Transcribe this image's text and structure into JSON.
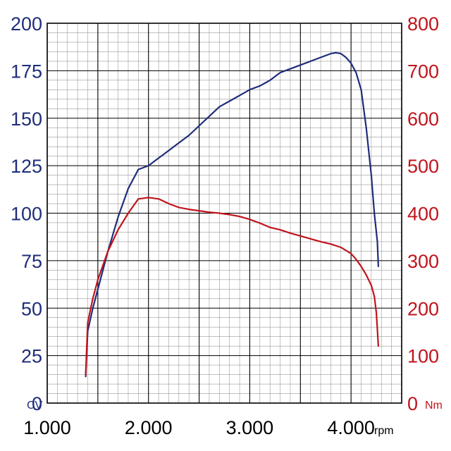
{
  "chart_data": {
    "type": "line",
    "title": "",
    "xlabel": "rpm",
    "ylabel_left": "CV",
    "ylabel_right": "Nm",
    "xlim": [
      1000,
      4500
    ],
    "ylim_left": [
      0,
      200
    ],
    "ylim_right": [
      0,
      800
    ],
    "grid": true,
    "colors": {
      "power": "#1f2d7a",
      "torque": "#c0141c",
      "grid_major": "#000000",
      "grid_minor": "#9a9a9a"
    },
    "x_ticks": [
      {
        "value": 1000,
        "label": "1.000"
      },
      {
        "value": 2000,
        "label": "2.000"
      },
      {
        "value": 3000,
        "label": "3.000"
      },
      {
        "value": 4000,
        "label": "4.000"
      }
    ],
    "y_ticks_left": [
      {
        "value": 0,
        "label": "0"
      },
      {
        "value": 25,
        "label": "25"
      },
      {
        "value": 50,
        "label": "50"
      },
      {
        "value": 75,
        "label": "75"
      },
      {
        "value": 100,
        "label": "100"
      },
      {
        "value": 125,
        "label": "125"
      },
      {
        "value": 150,
        "label": "150"
      },
      {
        "value": 175,
        "label": "175"
      },
      {
        "value": 200,
        "label": "200"
      }
    ],
    "y_ticks_right": [
      {
        "value": 0,
        "label": "0"
      },
      {
        "value": 100,
        "label": "100"
      },
      {
        "value": 200,
        "label": "200"
      },
      {
        "value": 300,
        "label": "300"
      },
      {
        "value": 400,
        "label": "400"
      },
      {
        "value": 500,
        "label": "500"
      },
      {
        "value": 600,
        "label": "600"
      },
      {
        "value": 700,
        "label": "700"
      },
      {
        "value": 800,
        "label": "800"
      }
    ],
    "series": [
      {
        "axis": "left",
        "x": [
          1380,
          1400,
          1450,
          1500,
          1600,
          1700,
          1800,
          1900,
          2000,
          2100,
          2200,
          2300,
          2400,
          2500,
          2600,
          2700,
          2800,
          2900,
          3000,
          3100,
          3200,
          3300,
          3400,
          3500,
          3600,
          3700,
          3800,
          3850,
          3900,
          3950,
          4000,
          4050,
          4100,
          4150,
          4200,
          4230,
          4260,
          4270
        ],
        "values": [
          14,
          38,
          50,
          60,
          80,
          98,
          113,
          123,
          125,
          129,
          133,
          137,
          141,
          146,
          151,
          156,
          159,
          162,
          165,
          167,
          170,
          174,
          176,
          178,
          180,
          182,
          184,
          184.5,
          184,
          182,
          179,
          174,
          165,
          145,
          120,
          100,
          85,
          72
        ]
      },
      {
        "axis": "right",
        "x": [
          1380,
          1400,
          1450,
          1500,
          1600,
          1700,
          1800,
          1900,
          2000,
          2100,
          2200,
          2300,
          2400,
          2500,
          2600,
          2700,
          2800,
          2900,
          3000,
          3100,
          3200,
          3300,
          3400,
          3500,
          3600,
          3700,
          3800,
          3900,
          4000,
          4050,
          4100,
          4150,
          4200,
          4230,
          4250,
          4270
        ],
        "values": [
          60,
          170,
          220,
          260,
          320,
          365,
          400,
          430,
          433,
          430,
          420,
          412,
          408,
          405,
          402,
          400,
          397,
          393,
          387,
          379,
          370,
          365,
          358,
          352,
          346,
          340,
          335,
          328,
          315,
          303,
          288,
          270,
          248,
          225,
          190,
          120
        ]
      }
    ]
  }
}
